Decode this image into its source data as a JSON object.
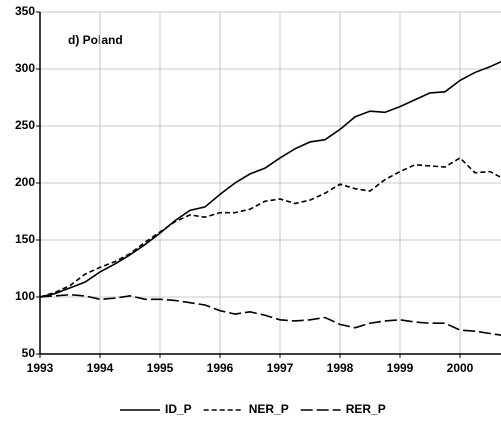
{
  "chart_data": {
    "type": "line",
    "annotation": "d) Poland",
    "x": [
      1993,
      1993.25,
      1993.5,
      1993.75,
      1994,
      1994.25,
      1994.5,
      1994.75,
      1995,
      1995.25,
      1995.5,
      1995.75,
      1996,
      1996.25,
      1996.5,
      1996.75,
      1997,
      1997.25,
      1997.5,
      1997.75,
      1998,
      1998.25,
      1998.5,
      1998.75,
      1999,
      1999.25,
      1999.5,
      1999.75,
      2000,
      2000.25,
      2000.5,
      2000.75
    ],
    "series": [
      {
        "name": "ID_P",
        "color": "#000000",
        "dash": "solid",
        "values": [
          100,
          103,
          108,
          113,
          122,
          129,
          137,
          146,
          156,
          167,
          176,
          179,
          190,
          200,
          208,
          213,
          222,
          230,
          236,
          238,
          247,
          258,
          263,
          262,
          267,
          273,
          279,
          280,
          290,
          297,
          302,
          308
        ]
      },
      {
        "name": "NER_P",
        "color": "#000000",
        "dash": "short",
        "values": [
          100,
          104,
          110,
          120,
          126,
          131,
          138,
          148,
          157,
          166,
          172,
          170,
          174,
          174,
          177,
          184,
          186,
          182,
          185,
          191,
          199,
          195,
          193,
          203,
          210,
          216,
          215,
          214,
          222,
          209,
          210,
          203
        ]
      },
      {
        "name": "RER_P",
        "color": "#000000",
        "dash": "long",
        "values": [
          100,
          101,
          102,
          101,
          98,
          99,
          101,
          98,
          98,
          97,
          95,
          93,
          88,
          85,
          87,
          84,
          80,
          79,
          80,
          82,
          76,
          73,
          77,
          79,
          80,
          78,
          77,
          77,
          71,
          70,
          68,
          66
        ]
      }
    ],
    "xlim": [
      1993,
      2000.7
    ],
    "xticks": [
      1993,
      1994,
      1995,
      1996,
      1997,
      1998,
      1999,
      2000
    ],
    "ylim": [
      50,
      350
    ],
    "yticks": [
      50,
      100,
      150,
      200,
      250,
      300,
      350
    ],
    "grid": true,
    "legend": "bottom"
  }
}
